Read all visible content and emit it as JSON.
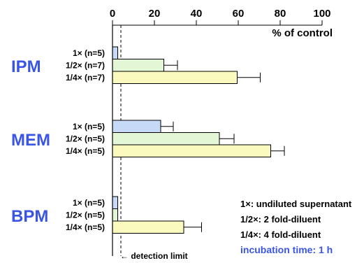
{
  "chart_data": {
    "type": "bar",
    "orientation": "horizontal",
    "x_axis": {
      "min": 0,
      "max": 100,
      "ticks": [
        0,
        20,
        40,
        60,
        80,
        100
      ],
      "label": "% of control",
      "position": "top"
    },
    "groups": [
      {
        "name": "IPM",
        "bars": [
          {
            "label": "1× (n=5)",
            "value": 2.5,
            "error": null
          },
          {
            "label": "1/2× (n=7)",
            "value": 24.5,
            "error": 6.5
          },
          {
            "label": "1/4× (n=7)",
            "value": 59.5,
            "error": 11
          }
        ]
      },
      {
        "name": "MEM",
        "bars": [
          {
            "label": "1× (n=5)",
            "value": 23,
            "error": 6
          },
          {
            "label": "1/2× (n=5)",
            "value": 51,
            "error": 7
          },
          {
            "label": "1/4× (n=5)",
            "value": 75.5,
            "error": 6.5
          }
        ]
      },
      {
        "name": "BPM",
        "bars": [
          {
            "label": "1× (n=5)",
            "value": 2.5,
            "error": null
          },
          {
            "label": "1/2× (n=5)",
            "value": 2.5,
            "error": null
          },
          {
            "label": "1/4× (n=5)",
            "value": 34,
            "error": 8.5
          }
        ]
      }
    ],
    "bar_colors": [
      "#c6d9f7",
      "#e3f6d6",
      "#fafabf"
    ],
    "detection_limit": {
      "value": 4,
      "label": "← detection limit"
    },
    "legend": {
      "placement": "bottom-right",
      "items": [
        "1×: undiluted supernatant",
        "1/2×: 2 fold-diluent",
        "1/4×: 4 fold-diluent"
      ],
      "highlight": "incubation time: 1 h",
      "highlight_color": "#3a55e6"
    },
    "grid": false
  }
}
